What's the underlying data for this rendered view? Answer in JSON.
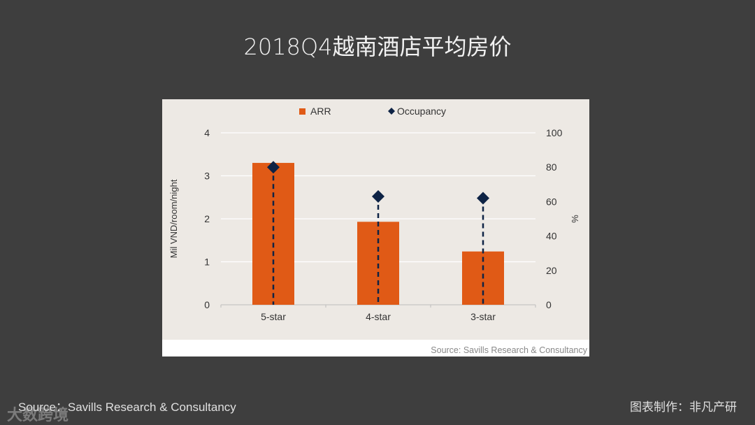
{
  "title": "2018Q4越南酒店平均房价",
  "footer": {
    "source": "Source：Savills Research & Consultancy",
    "credit": "图表制作：非凡产研",
    "watermark": "大数跨境"
  },
  "chart_data": {
    "type": "bar",
    "categories": [
      "5-star",
      "4-star",
      "3-star"
    ],
    "series": [
      {
        "name": "ARR",
        "kind": "bar",
        "axis": "left",
        "color": "#e05a16",
        "values": [
          3.3,
          1.93,
          1.24
        ]
      },
      {
        "name": "Occupancy",
        "kind": "marker",
        "axis": "right",
        "color": "#0e2345",
        "values": [
          80,
          63,
          62
        ]
      }
    ],
    "ylabel": "Mil VND/room/night",
    "ylabel_right": "%",
    "ylim": [
      0,
      4
    ],
    "yticks": [
      "0",
      "1",
      "2",
      "3",
      "4"
    ],
    "ylim_right": [
      0,
      100
    ],
    "yticks_right": [
      "0",
      "20",
      "40",
      "60",
      "80",
      "100"
    ],
    "grid": true,
    "legend_position": "top",
    "source_note": "Source: Savills Research & Consultancy",
    "background": "#ede9e4"
  }
}
